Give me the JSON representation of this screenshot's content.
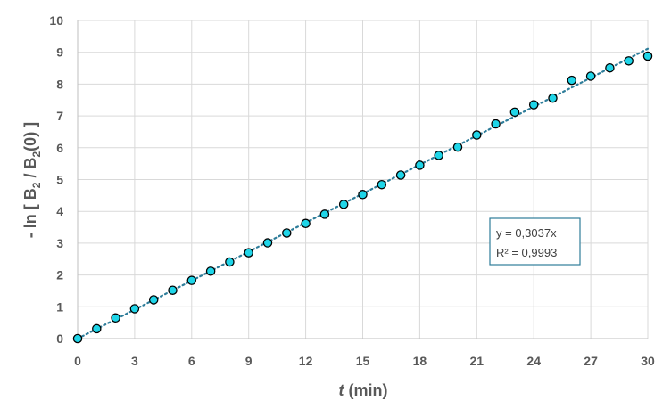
{
  "chart_data": {
    "type": "scatter",
    "xlabel_italic": "t",
    "xlabel_rest": " (min)",
    "ylabel_parts": {
      "a": "- ln [ B",
      "sub1": "2",
      "b": " / B",
      "sub2": "2",
      "c": "(0) ]"
    },
    "xlim": [
      0,
      30
    ],
    "ylim": [
      0,
      10
    ],
    "xticks": [
      "0",
      "3",
      "6",
      "9",
      "12",
      "15",
      "18",
      "21",
      "24",
      "27",
      "30"
    ],
    "yticks": [
      "0",
      "1",
      "2",
      "3",
      "4",
      "5",
      "6",
      "7",
      "8",
      "9",
      "10"
    ],
    "grid": true,
    "series": [
      {
        "marker_color": "#1fd5e8",
        "x": [
          0,
          1,
          2,
          3,
          4,
          5,
          6,
          7,
          8,
          9,
          10,
          11,
          12,
          13,
          14,
          15,
          16,
          17,
          18,
          19,
          20,
          21,
          22,
          23,
          24,
          25,
          26,
          27,
          28,
          29,
          30
        ],
        "y": [
          0,
          0.31,
          0.65,
          0.94,
          1.22,
          1.52,
          1.83,
          2.12,
          2.41,
          2.7,
          3.01,
          3.32,
          3.62,
          3.91,
          4.22,
          4.53,
          4.84,
          5.14,
          5.45,
          5.76,
          6.02,
          6.4,
          6.75,
          7.12,
          7.35,
          7.56,
          8.12,
          8.25,
          8.51,
          8.73,
          8.88
        ]
      }
    ],
    "trendline": {
      "slope": 0.3037,
      "color": "#2e7d9a",
      "equation": "y = 0,3037x",
      "r2": "R² = 0,9993"
    }
  }
}
